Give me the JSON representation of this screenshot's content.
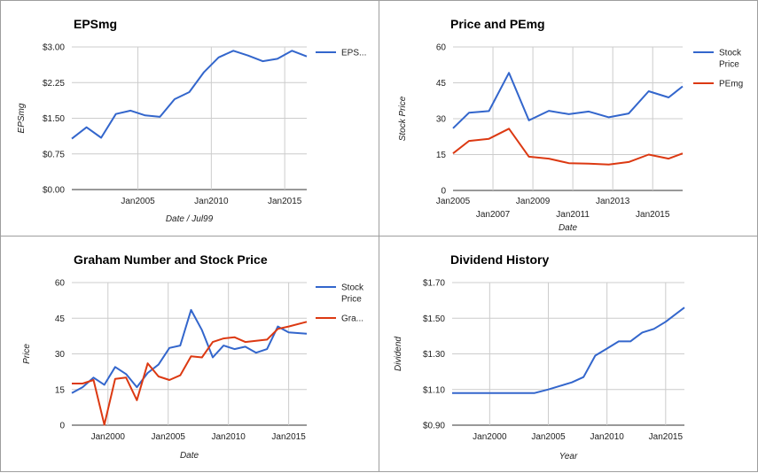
{
  "colors": {
    "blue": "#3366cc",
    "red": "#dc3912"
  },
  "chart_data": [
    {
      "type": "line",
      "title": "EPSmg",
      "xlabel": "Date / Jul99",
      "ylabel": "EPSmg",
      "x_ticks": [
        {
          "x": 2005,
          "label": "Jan2005"
        },
        {
          "x": 2010,
          "label": "Jan2010"
        },
        {
          "x": 2015,
          "label": "Jan2015"
        }
      ],
      "y_ticks": [
        {
          "v": 0,
          "label": "$0.00"
        },
        {
          "v": 0.75,
          "label": "$0.75"
        },
        {
          "v": 1.5,
          "label": "$1.50"
        },
        {
          "v": 2.25,
          "label": "$2.25"
        },
        {
          "v": 3.0,
          "label": "$3.00"
        }
      ],
      "xlim": [
        2000.5,
        2016.5
      ],
      "ylim": [
        0,
        3.0
      ],
      "grid": true,
      "legend": "right",
      "series": [
        {
          "name": "EPS...",
          "color": "#3366cc",
          "x": [
            2000.5,
            2001.5,
            2002.5,
            2003.5,
            2004.5,
            2005.5,
            2006.5,
            2007.5,
            2008.5,
            2009.5,
            2010.5,
            2011.5,
            2012.5,
            2013.5,
            2014.5,
            2015.5,
            2016.5
          ],
          "y": [
            1.07,
            1.31,
            1.09,
            1.59,
            1.66,
            1.56,
            1.53,
            1.9,
            2.05,
            2.47,
            2.78,
            2.92,
            2.82,
            2.7,
            2.75,
            2.92,
            2.8
          ]
        }
      ]
    },
    {
      "type": "line",
      "title": "Price and PEmg",
      "xlabel": "Date",
      "ylabel": "Stock Price",
      "x_ticks": [
        {
          "x": 2005,
          "label": "Jan2005",
          "row": 0
        },
        {
          "x": 2007,
          "label": "Jan2007",
          "row": 1
        },
        {
          "x": 2009,
          "label": "Jan2009",
          "row": 0
        },
        {
          "x": 2011,
          "label": "Jan2011",
          "row": 1
        },
        {
          "x": 2013,
          "label": "Jan2013",
          "row": 0
        },
        {
          "x": 2015,
          "label": "Jan2015",
          "row": 1
        }
      ],
      "y_ticks": [
        {
          "v": 0,
          "label": "0"
        },
        {
          "v": 15,
          "label": "15"
        },
        {
          "v": 30,
          "label": "30"
        },
        {
          "v": 45,
          "label": "45"
        },
        {
          "v": 60,
          "label": "60"
        }
      ],
      "xlim": [
        2005,
        2016.5
      ],
      "ylim": [
        0,
        60
      ],
      "grid": true,
      "legend": "right",
      "series": [
        {
          "name": "Stock Price",
          "color": "#3366cc",
          "x": [
            2005,
            2005.8,
            2006.8,
            2007.8,
            2008.8,
            2009.8,
            2010.8,
            2011.8,
            2012.8,
            2013.8,
            2014.8,
            2015.8,
            2016.5
          ],
          "y": [
            26,
            32.5,
            33.2,
            49.2,
            29.3,
            33.3,
            31.9,
            33.0,
            30.6,
            32.2,
            41.5,
            38.9,
            43.5
          ]
        },
        {
          "name": "PEmg",
          "color": "#dc3912",
          "x": [
            2005,
            2005.8,
            2006.8,
            2007.8,
            2008.8,
            2009.8,
            2010.8,
            2011.8,
            2012.8,
            2013.8,
            2014.8,
            2015.8,
            2016.5
          ],
          "y": [
            15.5,
            20.7,
            21.6,
            25.8,
            14.1,
            13.3,
            11.4,
            11.2,
            10.8,
            11.9,
            15.0,
            13.3,
            15.5
          ]
        }
      ]
    },
    {
      "type": "line",
      "title": "Graham Number and Stock Price",
      "xlabel": "Date",
      "ylabel": "Price",
      "x_ticks": [
        {
          "x": 2000,
          "label": "Jan2000"
        },
        {
          "x": 2005,
          "label": "Jan2005"
        },
        {
          "x": 2010,
          "label": "Jan2010"
        },
        {
          "x": 2015,
          "label": "Jan2015"
        }
      ],
      "y_ticks": [
        {
          "v": 0,
          "label": "0"
        },
        {
          "v": 15,
          "label": "15"
        },
        {
          "v": 30,
          "label": "30"
        },
        {
          "v": 45,
          "label": "45"
        },
        {
          "v": 60,
          "label": "60"
        }
      ],
      "xlim": [
        1997,
        2016.5
      ],
      "ylim": [
        0,
        60
      ],
      "grid": true,
      "legend": "right",
      "series": [
        {
          "name": "Stock Price",
          "color": "#3366cc",
          "x": [
            1997,
            1997.9,
            1998.8,
            1999.7,
            2000.6,
            2001.5,
            2002.4,
            2003.3,
            2004.2,
            2005.1,
            2006.0,
            2006.9,
            2007.8,
            2008.7,
            2009.6,
            2010.5,
            2011.4,
            2012.3,
            2013.2,
            2014.1,
            2015.0,
            2016.5
          ],
          "y": [
            13.5,
            16,
            20,
            17,
            24.5,
            21.5,
            16,
            22,
            25.5,
            32.5,
            33.5,
            48.5,
            40,
            28.5,
            33.5,
            32,
            33,
            30.5,
            32,
            41.5,
            39,
            38.5
          ]
        },
        {
          "name": "Gra...",
          "color": "#dc3912",
          "x": [
            1997,
            1997.9,
            1998.8,
            1999.7,
            2000.6,
            2001.5,
            2002.4,
            2003.3,
            2004.2,
            2005.1,
            2006.0,
            2006.9,
            2007.8,
            2008.7,
            2009.6,
            2010.5,
            2011.4,
            2012.3,
            2013.2,
            2014.1,
            2015.0,
            2016.5
          ],
          "y": [
            17.5,
            17.5,
            19,
            0.2,
            19.5,
            20,
            10.5,
            26,
            20.5,
            19,
            21,
            29,
            28.5,
            35,
            36.5,
            37,
            35,
            35.5,
            36,
            40.5,
            41.5,
            43.5
          ]
        }
      ]
    },
    {
      "type": "line",
      "title": "Dividend History",
      "xlabel": "Year",
      "ylabel": "Dividend",
      "x_ticks": [
        {
          "x": 2000,
          "label": "Jan2000"
        },
        {
          "x": 2005,
          "label": "Jan2005"
        },
        {
          "x": 2010,
          "label": "Jan2010"
        },
        {
          "x": 2015,
          "label": "Jan2015"
        }
      ],
      "y_ticks": [
        {
          "v": 0.9,
          "label": "$0.90"
        },
        {
          "v": 1.1,
          "label": "$1.10"
        },
        {
          "v": 1.3,
          "label": "$1.30"
        },
        {
          "v": 1.5,
          "label": "$1.50"
        },
        {
          "v": 1.7,
          "label": "$1.70"
        }
      ],
      "xlim": [
        1996.8,
        2016.6
      ],
      "ylim": [
        0.9,
        1.7
      ],
      "grid": true,
      "legend": "none",
      "series": [
        {
          "name": "",
          "color": "#3366cc",
          "x": [
            1996.8,
            1998,
            1999,
            2000,
            2001,
            2002,
            2003,
            2003.8,
            2005,
            2006,
            2007,
            2008,
            2009,
            2010,
            2011,
            2012,
            2013,
            2014,
            2015,
            2016.6
          ],
          "y": [
            1.08,
            1.08,
            1.08,
            1.08,
            1.08,
            1.08,
            1.08,
            1.08,
            1.1,
            1.12,
            1.14,
            1.17,
            1.29,
            1.33,
            1.37,
            1.37,
            1.42,
            1.44,
            1.48,
            1.56
          ]
        }
      ]
    }
  ]
}
